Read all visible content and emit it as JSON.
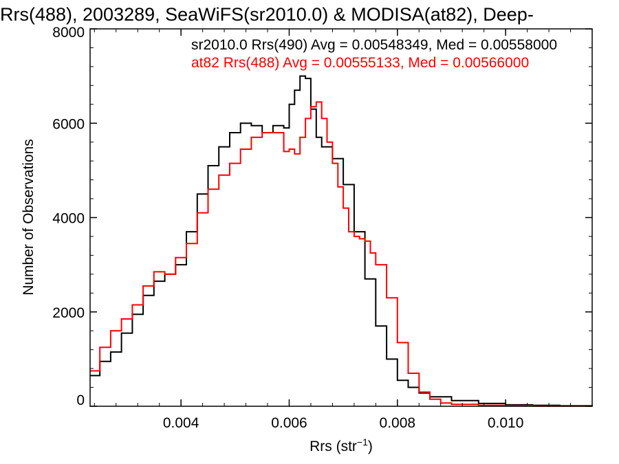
{
  "chart_data": {
    "type": "line",
    "title": "Rrs(488), 2003289, SeaWiFS(sr2010.0) & MODISA(at82), Deep-",
    "xlabel": "Rrs (str",
    "xlabel_sup": "−1",
    "xlabel_close": ")",
    "ylabel": "Number of Observations",
    "xlim": [
      0.00232,
      0.0116
    ],
    "ylim": [
      0,
      8000
    ],
    "x_ticks": [
      0.004,
      0.006,
      0.008,
      0.01
    ],
    "x_tick_labels": [
      "0.004",
      "0.006",
      "0.008",
      "0.010"
    ],
    "y_ticks": [
      0,
      2000,
      4000,
      6000,
      8000
    ],
    "y_tick_labels": [
      "0",
      "2000",
      "4000",
      "6000",
      "8000"
    ],
    "grid": false,
    "legend_position": "top-right",
    "series": [
      {
        "name": "sr2010.0 Rrs(490)",
        "legend": "sr2010.0 Rrs(490) Avg = 0.00548349, Med = 0.00558000",
        "color": "#000000",
        "x": [
          0.00232,
          0.0025,
          0.0027,
          0.0029,
          0.0031,
          0.0033,
          0.0035,
          0.0037,
          0.0039,
          0.0041,
          0.0043,
          0.0045,
          0.0047,
          0.0049,
          0.0051,
          0.0053,
          0.0055,
          0.0057,
          0.0059,
          0.006,
          0.0061,
          0.0062,
          0.0063,
          0.0064,
          0.0065,
          0.0066,
          0.0068,
          0.007,
          0.0072,
          0.0074,
          0.0076,
          0.0078,
          0.008,
          0.0082,
          0.0084,
          0.0086,
          0.009,
          0.0095,
          0.01,
          0.0105,
          0.011,
          0.0116
        ],
        "y": [
          650,
          950,
          1150,
          1550,
          1950,
          2350,
          2650,
          2800,
          3000,
          3700,
          4500,
          5100,
          5500,
          5800,
          6000,
          5950,
          5800,
          5950,
          5900,
          6400,
          6700,
          7000,
          6950,
          6300,
          5700,
          5500,
          5250,
          4700,
          3700,
          2700,
          1700,
          1000,
          550,
          400,
          280,
          200,
          120,
          60,
          30,
          20,
          10,
          5
        ]
      },
      {
        "name": "at82 Rrs(488)",
        "legend": "at82 Rrs(488) Avg = 0.00555133, Med = 0.00566000",
        "color": "#ff0000",
        "x": [
          0.00232,
          0.0025,
          0.0027,
          0.0029,
          0.0031,
          0.0033,
          0.0035,
          0.0037,
          0.0039,
          0.0041,
          0.0043,
          0.0045,
          0.0047,
          0.0049,
          0.0051,
          0.0053,
          0.0055,
          0.0057,
          0.0059,
          0.006,
          0.0061,
          0.0062,
          0.0063,
          0.0064,
          0.0065,
          0.0066,
          0.0067,
          0.0068,
          0.0069,
          0.007,
          0.0071,
          0.0072,
          0.0073,
          0.0074,
          0.0075,
          0.0076,
          0.0078,
          0.008,
          0.0082,
          0.0084,
          0.0086,
          0.0088,
          0.009,
          0.0095,
          0.01,
          0.0105,
          0.011,
          0.0116
        ],
        "y": [
          750,
          1250,
          1600,
          1850,
          2150,
          2550,
          2850,
          2800,
          3150,
          3450,
          4100,
          4600,
          4900,
          5150,
          5450,
          5700,
          5800,
          5800,
          5400,
          5450,
          5350,
          5700,
          6100,
          6350,
          6450,
          6100,
          5600,
          5150,
          4650,
          4200,
          3700,
          3600,
          3550,
          3500,
          3250,
          3000,
          2300,
          1350,
          700,
          300,
          150,
          70,
          40,
          20,
          10,
          5,
          3,
          2
        ]
      }
    ]
  }
}
